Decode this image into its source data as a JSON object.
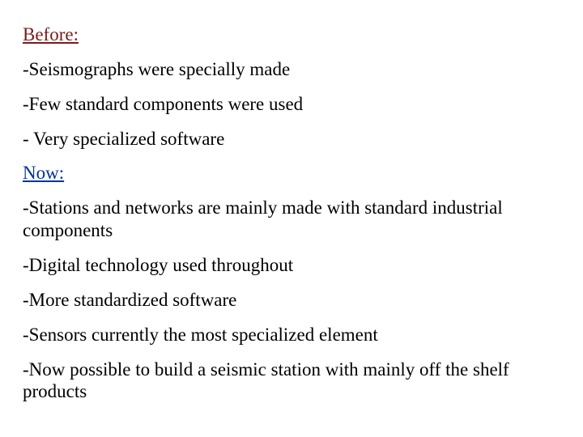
{
  "colors": {
    "before_heading": "#7a1a1a",
    "now_heading": "#003399",
    "body_text": "#000000",
    "background": "#ffffff"
  },
  "typography": {
    "font_family": "Times New Roman",
    "font_size_pt": 18
  },
  "before": {
    "heading": "Before:",
    "items": [
      "-Seismographs were specially made",
      "-Few standard components were used",
      "- Very specialized software"
    ]
  },
  "now": {
    "heading": "Now:",
    "items": [
      "-Stations and networks are mainly made with standard industrial components",
      "-Digital technology used throughout",
      "-More standardized software",
      "-Sensors currently the most specialized element",
      "-Now possible to build a seismic station with mainly off the shelf products"
    ]
  }
}
